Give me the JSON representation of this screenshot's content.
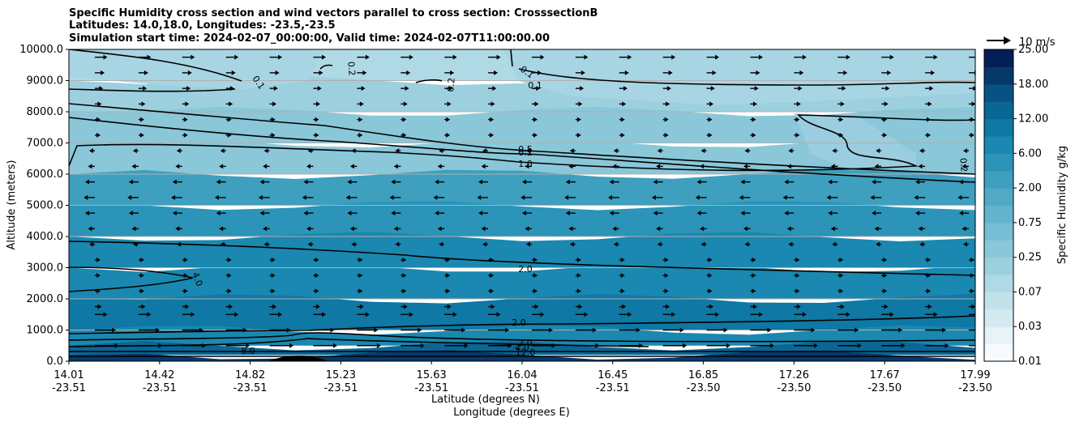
{
  "chart_data": {
    "type": "heatmap",
    "title_lines": [
      "Specific Humidity cross section and wind vectors parallel to cross section: CrosssectionB",
      "Latitudes: 14.0,18.0, Longitudes: -23.5,-23.5",
      "Simulation start time: 2024-02-07_00:00:00, Valid time: 2024-02-07T11:00:00.00"
    ],
    "ylabel": "Altitude (meters)",
    "xlabel_lat": "Latitude (degrees N)",
    "xlabel_lon": "Longitude (degrees E)",
    "ylim": [
      0,
      10000
    ],
    "y_ticks": [
      "0.0",
      "1000.0",
      "2000.0",
      "3000.0",
      "4000.0",
      "5000.0",
      "6000.0",
      "7000.0",
      "8000.0",
      "9000.0",
      "10000.0"
    ],
    "x_ticks": [
      {
        "lat": "14.01",
        "lon": "-23.51"
      },
      {
        "lat": "14.42",
        "lon": "-23.51"
      },
      {
        "lat": "14.82",
        "lon": "-23.51"
      },
      {
        "lat": "15.23",
        "lon": "-23.51"
      },
      {
        "lat": "15.63",
        "lon": "-23.51"
      },
      {
        "lat": "16.04",
        "lon": "-23.51"
      },
      {
        "lat": "16.45",
        "lon": "-23.51"
      },
      {
        "lat": "16.85",
        "lon": "-23.50"
      },
      {
        "lat": "17.26",
        "lon": "-23.50"
      },
      {
        "lat": "17.67",
        "lon": "-23.50"
      },
      {
        "lat": "17.99",
        "lon": "-23.50"
      }
    ],
    "colorbar": {
      "label": "Specific Humidity g/kg",
      "ticks": [
        "0.01",
        "0.03",
        "0.07",
        "0.25",
        "0.75",
        "2.00",
        "6.00",
        "12.00",
        "18.00",
        "25.00"
      ],
      "levels": 18,
      "colors": [
        "#f7fbfd",
        "#e7f3f6",
        "#d4eaf0",
        "#c2e2eb",
        "#afd9e5",
        "#9dd0df",
        "#8ac7d9",
        "#77bdd3",
        "#64b3cd",
        "#51a9c6",
        "#3e9fbf",
        "#2b94b8",
        "#1a88b0",
        "#0f78a4",
        "#0a6695",
        "#085283",
        "#06386a",
        "#031f55"
      ]
    },
    "quiver_key": {
      "label": "10 m/s",
      "speed": 10
    },
    "contour_labels": [
      "0.1",
      "0.2",
      "0.1",
      "0.2",
      "0.1",
      "0.2",
      "0.5",
      "1.0",
      "0.2",
      "4.0",
      "2.0",
      "2.0",
      "2.0",
      "4.0",
      "8.0",
      "12.0"
    ],
    "humidity_bands": [
      {
        "altitude": 10000,
        "value": 0.08
      },
      {
        "altitude": 9000,
        "value": 0.1
      },
      {
        "altitude": 8000,
        "value": 0.15
      },
      {
        "altitude": 7000,
        "value": 0.2
      },
      {
        "altitude": 6000,
        "value": 1.0
      },
      {
        "altitude": 5000,
        "value": 1.5
      },
      {
        "altitude": 4000,
        "value": 2.0
      },
      {
        "altitude": 3000,
        "value": 2.5
      },
      {
        "altitude": 2000,
        "value": 3.0
      },
      {
        "altitude": 1000,
        "value": 2.0
      },
      {
        "altitude": 500,
        "value": 6.0
      },
      {
        "altitude": 200,
        "value": 12.0
      }
    ],
    "wind_u_by_altitude": [
      {
        "altitude": 9750,
        "u": 3
      },
      {
        "altitude": 9250,
        "u": 2
      },
      {
        "altitude": 8750,
        "u": 1.5
      },
      {
        "altitude": 8250,
        "u": 1
      },
      {
        "altitude": 7750,
        "u": 0.5
      },
      {
        "altitude": 7250,
        "u": 0.3
      },
      {
        "altitude": 6750,
        "u": -0.3
      },
      {
        "altitude": 6250,
        "u": -1
      },
      {
        "altitude": 5750,
        "u": -2
      },
      {
        "altitude": 5250,
        "u": -2.5
      },
      {
        "altitude": 4750,
        "u": -2
      },
      {
        "altitude": 4250,
        "u": -1
      },
      {
        "altitude": 3750,
        "u": -0.5
      },
      {
        "altitude": 3250,
        "u": 0.3
      },
      {
        "altitude": 2750,
        "u": 0.5
      },
      {
        "altitude": 2250,
        "u": 0.5
      },
      {
        "altitude": 1750,
        "u": 1
      },
      {
        "altitude": 1500,
        "u": 3
      },
      {
        "altitude": 1000,
        "u": 6
      },
      {
        "altitude": 500,
        "u": 7
      }
    ]
  }
}
